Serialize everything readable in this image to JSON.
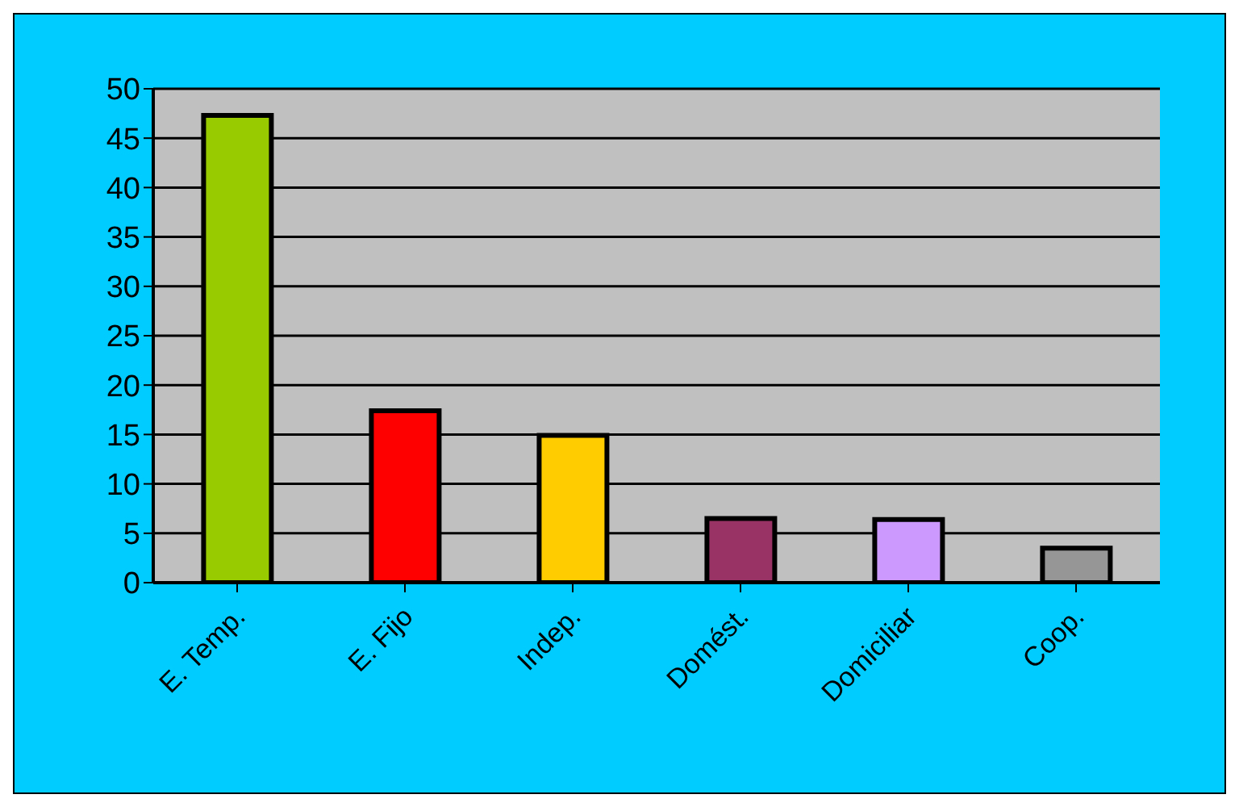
{
  "chart_data": {
    "type": "bar",
    "categories": [
      "E. Temp.",
      "E. Fijo",
      "Indep.",
      "Domést.",
      "Domiciliar",
      "Coop."
    ],
    "values": [
      47.3,
      17.4,
      14.9,
      6.5,
      6.4,
      3.5
    ],
    "colors": [
      "#99cc00",
      "#ff0000",
      "#ffcc00",
      "#993366",
      "#cc99ff",
      "#969696"
    ],
    "ylim": [
      0,
      50
    ],
    "yticks": [
      0,
      5,
      10,
      15,
      20,
      25,
      30,
      35,
      40,
      45,
      50
    ],
    "grid": "y"
  }
}
